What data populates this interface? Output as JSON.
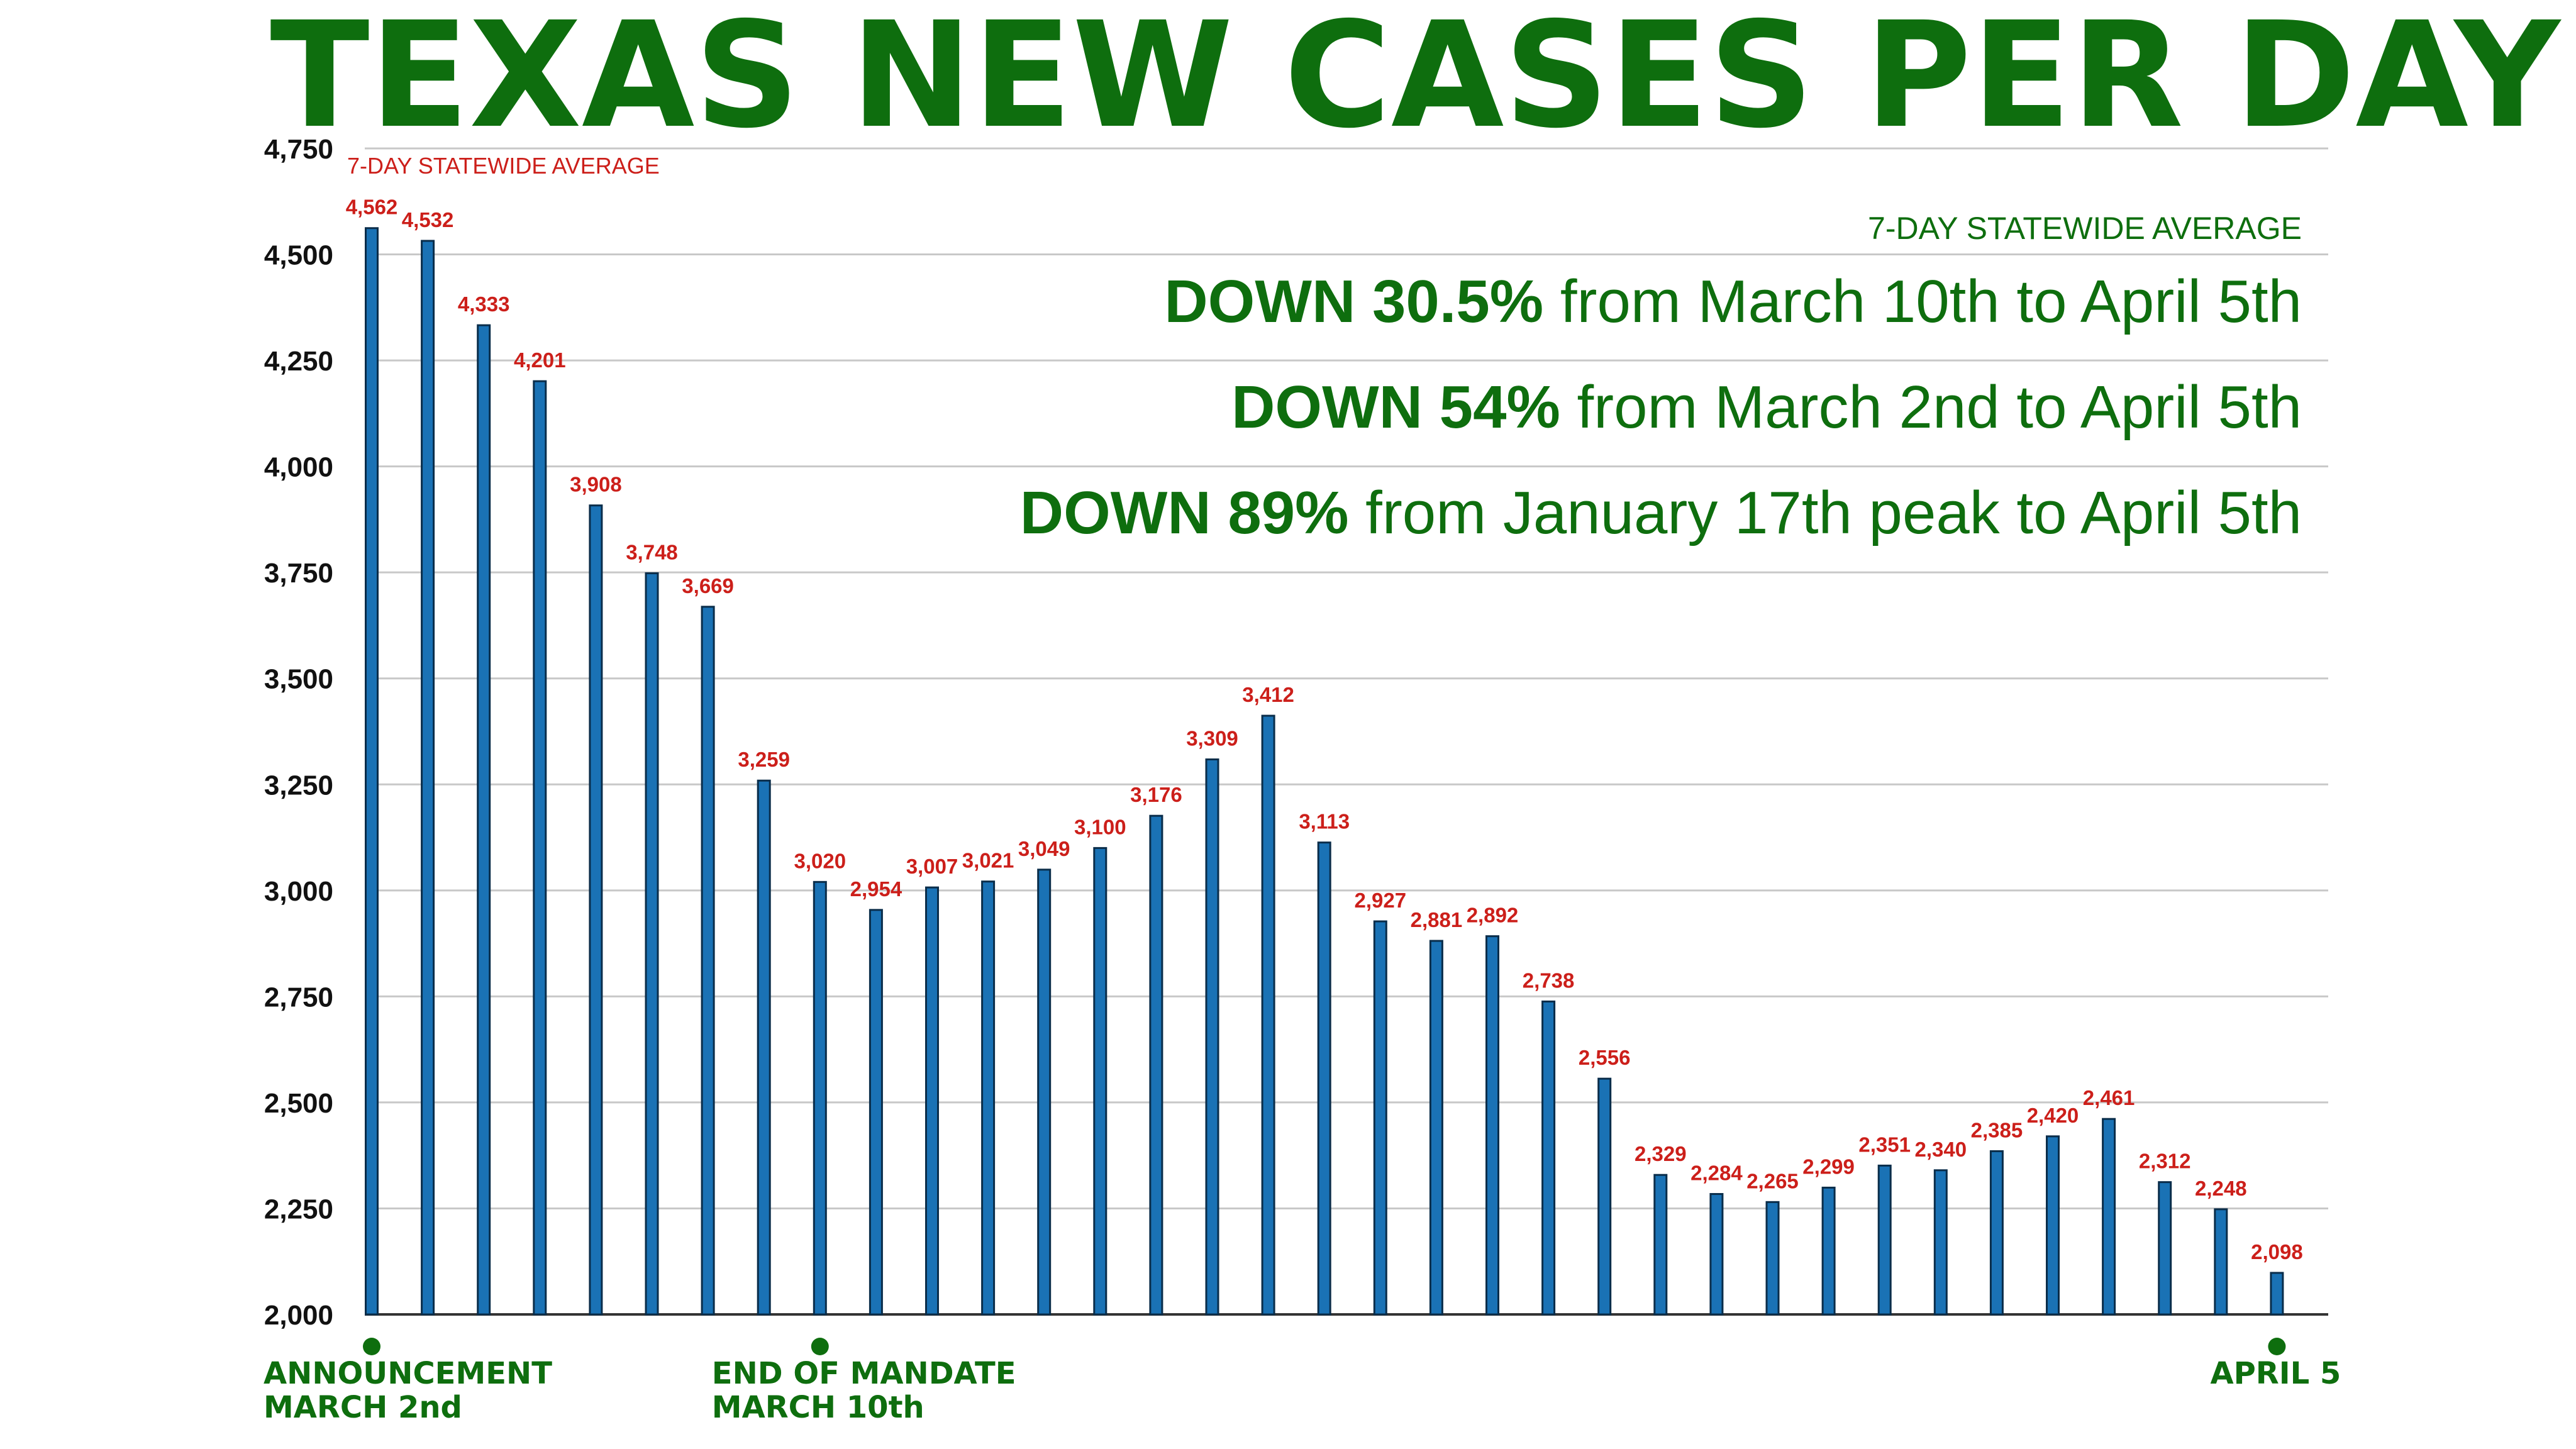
{
  "chart_data": {
    "type": "bar",
    "title": "TEXAS NEW CASES PER DAY",
    "series_label": "7-DAY STATEWIDE AVERAGE",
    "ylim": [
      2000,
      4750
    ],
    "yticks": [
      2000,
      2250,
      2500,
      2750,
      3000,
      3250,
      3500,
      3750,
      4000,
      4250,
      4500,
      4750
    ],
    "ytick_labels": [
      "2,000",
      "2,250",
      "2,500",
      "2,750",
      "3,000",
      "3,250",
      "3,500",
      "3,750",
      "4,000",
      "4,250",
      "4,500",
      "4,750"
    ],
    "grid": true,
    "values": [
      4562,
      4532,
      4333,
      4201,
      3908,
      3748,
      3669,
      3259,
      3020,
      2954,
      3007,
      3021,
      3049,
      3100,
      3176,
      3309,
      3412,
      3113,
      2927,
      2881,
      2892,
      2738,
      2556,
      2329,
      2284,
      2265,
      2299,
      2351,
      2340,
      2385,
      2420,
      2461,
      2312,
      2248,
      2098
    ],
    "value_labels": [
      "4,562",
      "4,532",
      "4,333",
      "4,201",
      "3,908",
      "3,748",
      "3,669",
      "3,259",
      "3,020",
      "2,954",
      "3,007",
      "3,021",
      "3,049",
      "3,100",
      "3,176",
      "3,309",
      "3,412",
      "3,113",
      "2,927",
      "2,881",
      "2,892",
      "2,738",
      "2,556",
      "2,329",
      "2,284",
      "2,265",
      "2,299",
      "2,351",
      "2,340",
      "2,385",
      "2,420",
      "2,461",
      "2,312",
      "2,248",
      "2,098"
    ],
    "annotation": {
      "subtitle": "7-DAY STATEWIDE AVERAGE",
      "lines": [
        {
          "bold": "DOWN 30.5%",
          "rest": " from March 10th to April 5th"
        },
        {
          "bold": "DOWN 54%",
          "rest": " from March 2nd to April 5th"
        },
        {
          "bold": "DOWN 89%",
          "rest": " from January 17th peak to April 5th"
        }
      ]
    },
    "markers": [
      {
        "bar_index": 0,
        "lines": [
          "ANNOUNCEMENT",
          "MARCH 2nd"
        ],
        "align": "left"
      },
      {
        "bar_index": 8,
        "lines": [
          "END OF MANDATE",
          "MARCH 10th"
        ],
        "align": "left"
      },
      {
        "bar_index": 34,
        "lines": [
          "APRIL 5"
        ],
        "align": "center"
      }
    ]
  },
  "colors": {
    "title": "#0e6e0e",
    "bar_fill": "#1a72b5",
    "bar_stroke": "#0a2d4a",
    "value_label": "#cc1f1a",
    "grid": "#c8c8c8",
    "axis": "#333333",
    "ytick": "#111111",
    "annotation": "#0e6e0e",
    "marker": "#0e6e0e"
  }
}
